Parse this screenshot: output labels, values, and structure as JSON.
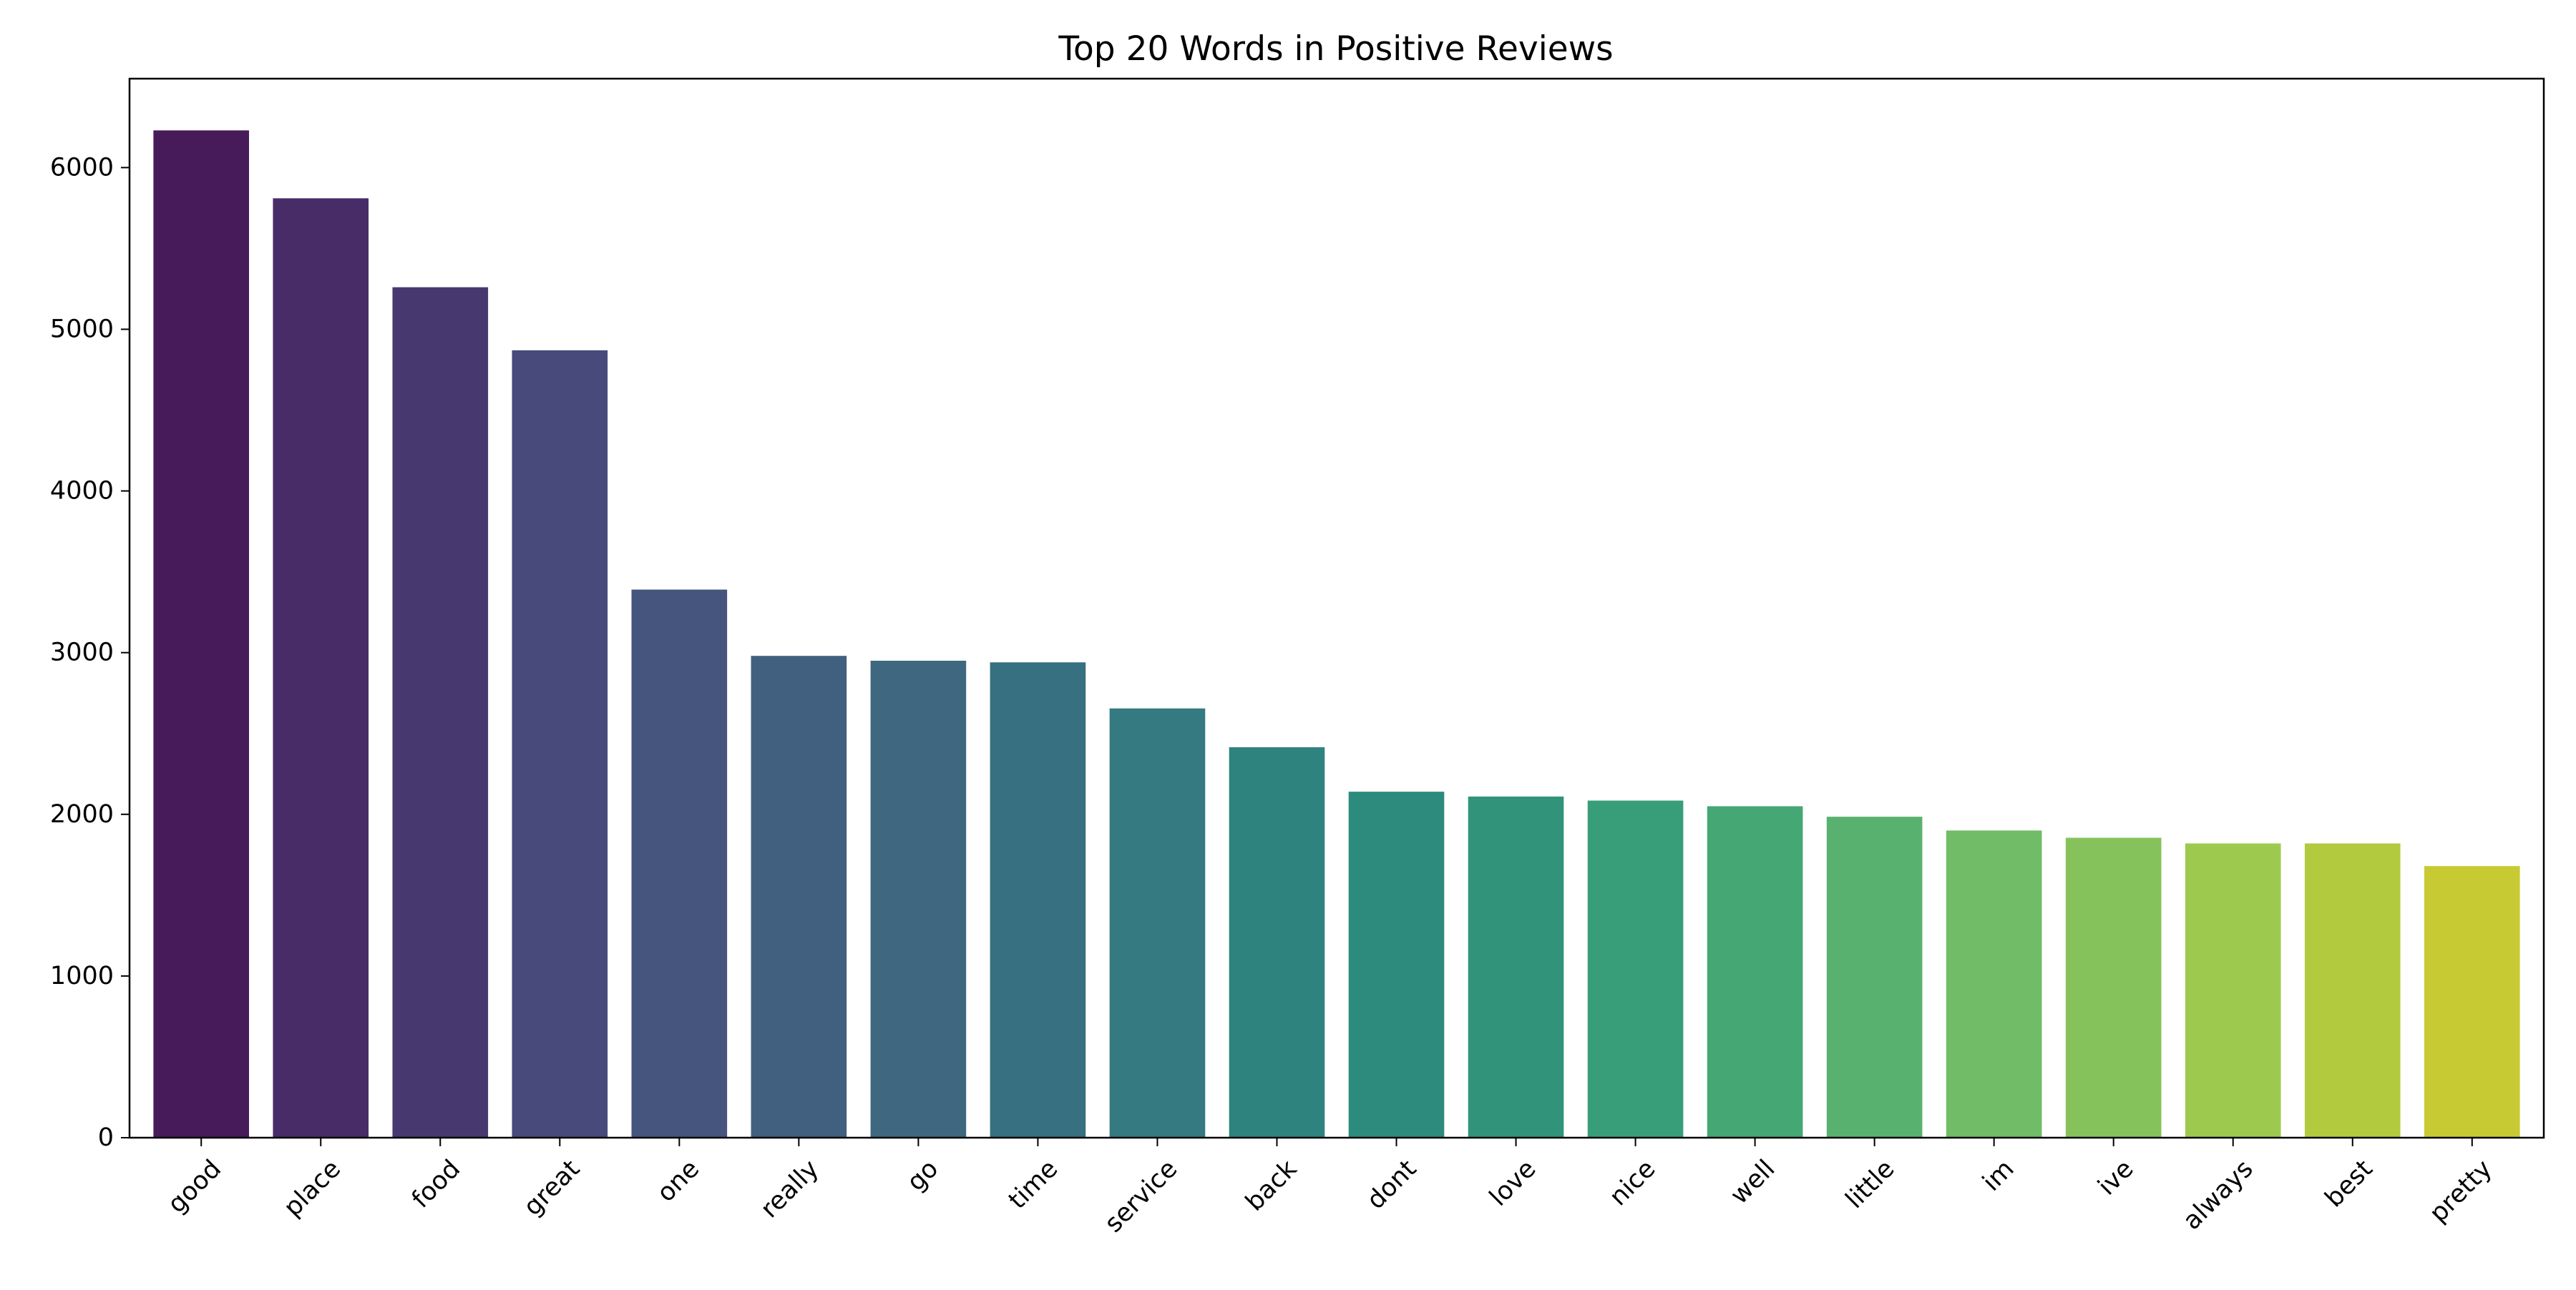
{
  "chart_data": {
    "type": "bar",
    "title": "Top 20 Words in Positive Reviews",
    "xlabel": "",
    "ylabel": "",
    "categories": [
      "good",
      "place",
      "food",
      "great",
      "one",
      "really",
      "go",
      "time",
      "service",
      "back",
      "dont",
      "love",
      "nice",
      "well",
      "little",
      "im",
      "ive",
      "always",
      "best",
      "pretty"
    ],
    "values": [
      6230,
      5810,
      5260,
      4870,
      3390,
      2980,
      2950,
      2940,
      2655,
      2415,
      2140,
      2110,
      2085,
      2050,
      1985,
      1900,
      1855,
      1820,
      1820,
      1680
    ],
    "ylim": [
      0,
      6550
    ],
    "yticks": [
      0,
      1000,
      2000,
      3000,
      4000,
      5000,
      6000
    ],
    "colors": [
      "#471b5a",
      "#482c68",
      "#473970",
      "#474a7b",
      "#46557e",
      "#415f7f",
      "#3f6880",
      "#377080",
      "#347a80",
      "#2f837f",
      "#2d8b7d",
      "#31947a",
      "#389e7a",
      "#45a774",
      "#59b16f",
      "#71bc67",
      "#86c25c",
      "#9ec94f",
      "#b2cb3e",
      "#c7ca33"
    ],
    "grid": false,
    "legend": "none"
  }
}
